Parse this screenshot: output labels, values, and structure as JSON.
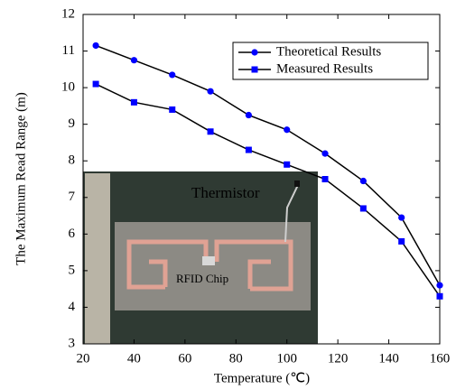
{
  "chart_data": {
    "type": "line",
    "x_label": "Temperature (℃)",
    "y_label": "The Maximum Read Range (m)",
    "x": [
      25,
      40,
      55,
      70,
      85,
      100,
      115,
      130,
      145,
      160
    ],
    "series": [
      {
        "name": "Theoretical Results",
        "color": "#0000ff",
        "line_color": "#000000",
        "marker": "circle",
        "values": [
          11.15,
          10.75,
          10.35,
          9.9,
          9.25,
          8.85,
          8.2,
          7.45,
          6.45,
          4.6
        ]
      },
      {
        "name": "Measured Results",
        "color": "#0000ff",
        "line_color": "#000000",
        "marker": "square",
        "values": [
          10.1,
          9.6,
          9.4,
          8.8,
          8.3,
          7.9,
          7.5,
          6.7,
          5.8,
          4.3
        ]
      }
    ],
    "xlim": [
      20,
      160
    ],
    "xticks": [
      20,
      40,
      60,
      80,
      100,
      120,
      140,
      160
    ],
    "ylim": [
      3,
      12
    ],
    "yticks": [
      3,
      4,
      5,
      6,
      7,
      8,
      9,
      10,
      11,
      12
    ],
    "legend": "upper right",
    "annotations": [
      "Thermistor",
      "RFID Chip"
    ]
  }
}
